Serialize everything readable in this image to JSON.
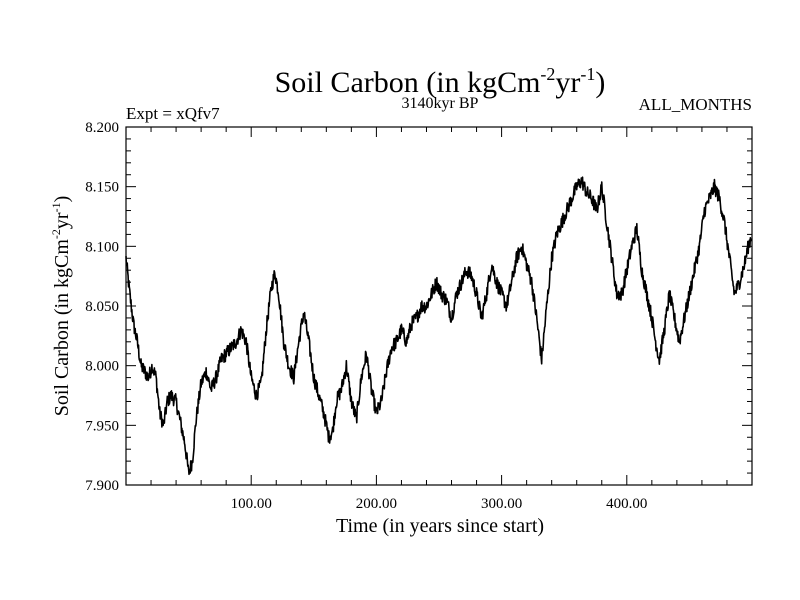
{
  "chart_data": {
    "type": "line",
    "title_main": "Soil Carbon (in kgCm",
    "title_sup1": "-2",
    "title_mid": "yr",
    "title_sup2": "-1",
    "title_end": ")",
    "subtitle": "3140kyr BP",
    "left_label": "Expt = xQfv7",
    "right_label": "ALL_MONTHS",
    "xlabel": "Time (in years since start)",
    "ylabel_main": "Soil Carbon (in kgCm",
    "ylabel_sup1": "-2",
    "ylabel_mid": "yr",
    "ylabel_sup2": "-1",
    "ylabel_end": ")",
    "xlim": [
      0,
      500
    ],
    "ylim": [
      7.9,
      8.2
    ],
    "xticks": [
      100,
      200,
      300,
      400
    ],
    "xtick_labels": [
      "100.00",
      "200.00",
      "300.00",
      "400.00"
    ],
    "yticks": [
      7.9,
      7.95,
      8.0,
      8.05,
      8.1,
      8.15,
      8.2
    ],
    "ytick_labels": [
      "7.900",
      "7.950",
      "8.000",
      "8.050",
      "8.100",
      "8.150",
      "8.200"
    ],
    "series": [
      {
        "name": "Soil Carbon",
        "color": "#000000",
        "x": [
          0,
          3,
          6,
          9,
          12,
          15,
          18,
          21,
          24,
          27,
          30,
          33,
          36,
          40,
          44,
          47,
          50,
          53,
          56,
          60,
          64,
          68,
          72,
          76,
          80,
          84,
          88,
          92,
          96,
          100,
          104,
          108,
          112,
          116,
          119,
          122,
          126,
          130,
          134,
          138,
          142,
          146,
          150,
          154,
          158,
          162,
          165,
          168,
          172,
          176,
          180,
          184,
          188,
          192,
          196,
          200,
          204,
          208,
          212,
          216,
          220,
          224,
          228,
          232,
          236,
          240,
          244,
          248,
          252,
          256,
          260,
          264,
          268,
          272,
          276,
          280,
          284,
          288,
          292,
          296,
          300,
          304,
          308,
          312,
          316,
          320,
          324,
          328,
          332,
          336,
          340,
          344,
          348,
          352,
          356,
          360,
          364,
          368,
          372,
          376,
          380,
          384,
          388,
          392,
          396,
          400,
          404,
          408,
          412,
          416,
          420,
          423,
          426,
          430,
          434,
          438,
          442,
          446,
          450,
          454,
          458,
          462,
          466,
          470,
          474,
          478,
          482,
          486,
          490,
          494,
          497,
          500
        ],
        "y": [
          8.09,
          8.06,
          8.035,
          8.02,
          8.0,
          7.995,
          7.99,
          8.0,
          7.99,
          7.96,
          7.95,
          7.97,
          7.975,
          7.97,
          7.95,
          7.935,
          7.91,
          7.92,
          7.955,
          7.985,
          7.995,
          7.98,
          7.99,
          8.005,
          8.01,
          8.015,
          8.02,
          8.03,
          8.02,
          7.99,
          7.975,
          7.985,
          8.03,
          8.065,
          8.078,
          8.06,
          8.02,
          8.0,
          7.99,
          8.02,
          8.045,
          8.02,
          7.99,
          7.975,
          7.96,
          7.94,
          7.945,
          7.97,
          7.98,
          8.0,
          7.97,
          7.955,
          7.99,
          8.01,
          7.98,
          7.96,
          7.97,
          7.995,
          8.015,
          8.02,
          8.03,
          8.02,
          8.035,
          8.04,
          8.05,
          8.05,
          8.06,
          8.07,
          8.06,
          8.055,
          8.04,
          8.06,
          8.07,
          8.08,
          8.075,
          8.06,
          8.04,
          8.06,
          8.085,
          8.07,
          8.06,
          8.05,
          8.07,
          8.09,
          8.1,
          8.085,
          8.07,
          8.04,
          8.005,
          8.05,
          8.09,
          8.11,
          8.12,
          8.13,
          8.14,
          8.15,
          8.155,
          8.145,
          8.14,
          8.13,
          8.15,
          8.12,
          8.09,
          8.06,
          8.06,
          8.08,
          8.1,
          8.115,
          8.08,
          8.06,
          8.04,
          8.02,
          8.005,
          8.03,
          8.06,
          8.04,
          8.02,
          8.04,
          8.06,
          8.08,
          8.1,
          8.13,
          8.14,
          8.15,
          8.14,
          8.12,
          8.09,
          8.06,
          8.07,
          8.085,
          8.1,
          8.11
        ]
      }
    ]
  }
}
